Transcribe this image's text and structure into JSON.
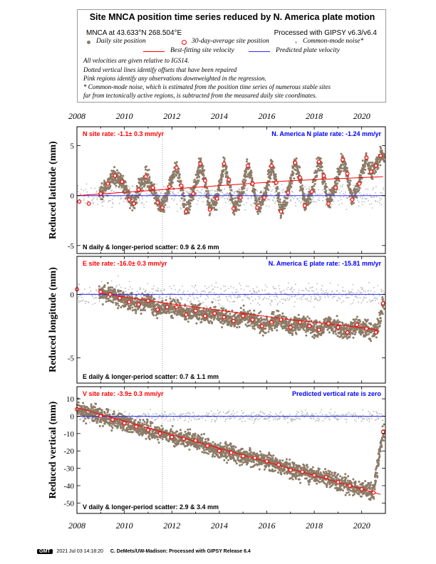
{
  "legend": {
    "title": "Site MNCA position time series reduced by N. America plate motion",
    "site_label": "MNCA at 43.633°N 268.504°E",
    "processed_label": "Processed with GIPSY v6.3/v6.4",
    "key_daily": "Daily site position",
    "key_avg": "30-day-average site position",
    "key_noise": "Common-mode noise*",
    "key_best": "Best-fitting site velocity",
    "key_pred": "Predicted plate velocity",
    "note1": "All velocities are given relative to IGS14.",
    "note2": "Dotted vertical lines identify offsets that have been repaired",
    "note3": "Pink regions identify any observations downweighted in the regression.",
    "note4": "* Common-mode noise, which is estimated from the position time series of numerous stable sites",
    "note5": "far from tectonically active regions, is subtracted from the measured daily site coordinates."
  },
  "colors": {
    "daily": "#8c7b67",
    "noise": "#b9b9b9",
    "avg": "#ff0000",
    "best": "#ff0000",
    "pred": "#2a2aff",
    "red_text": "#ff0000",
    "blue_text": "#0000ff"
  },
  "chart_data": [
    {
      "type": "scatter",
      "ylabel": "Reduced latitude (mm)",
      "xlim": [
        2008,
        2021
      ],
      "ylim": [
        -5.8,
        6.9
      ],
      "yticks": [
        "-5",
        "0",
        "5"
      ],
      "xticks": [
        "2008",
        "2010",
        "2012",
        "2014",
        "2016",
        "2018",
        "2020"
      ],
      "site_rate": "N site rate:  -1.1± 0.3 mm/yr",
      "plate_rate": "N. America N plate rate:  -1.24 mm/yr",
      "scatter": "N daily & longer-period scatter:    0.9 &    2.6 mm",
      "offset_x": 2011.6,
      "predicted_y": 0,
      "best_fit": [
        [
          2008,
          0.0
        ],
        [
          2011,
          0.5
        ],
        [
          2014,
          1.0
        ],
        [
          2017,
          1.5
        ],
        [
          2020.9,
          1.9
        ]
      ],
      "series": [
        {
          "name": "30-day-average site position",
          "x": [
            2008.1,
            2008.5,
            2009.0,
            2009.3,
            2009.6,
            2009.9,
            2010.2,
            2010.4,
            2010.6,
            2010.9,
            2011.2,
            2011.4,
            2011.6,
            2011.9,
            2012.2,
            2012.4,
            2012.6,
            2012.9,
            2013.2,
            2013.4,
            2013.6,
            2013.9,
            2014.2,
            2014.4,
            2014.6,
            2014.9,
            2015.2,
            2015.4,
            2015.6,
            2015.9,
            2016.2,
            2016.4,
            2016.6,
            2016.9,
            2017.2,
            2017.4,
            2017.6,
            2017.9,
            2018.2,
            2018.4,
            2018.6,
            2018.9,
            2019.2,
            2019.4,
            2019.6,
            2019.9,
            2020.2,
            2020.4,
            2020.6,
            2020.8
          ],
          "y": [
            -0.6,
            -0.8,
            0.2,
            1.2,
            2.0,
            1.4,
            -0.4,
            -0.8,
            0.6,
            1.9,
            0.8,
            -0.7,
            -1.2,
            0.9,
            2.8,
            1.0,
            -1.6,
            0.2,
            3.2,
            1.5,
            -1.4,
            -0.3,
            3.2,
            1.6,
            -1.3,
            -0.2,
            3.0,
            1.2,
            -1.2,
            -0.2,
            3.0,
            1.3,
            -1.6,
            0.3,
            3.3,
            1.8,
            -1.0,
            0.4,
            3.4,
            2.0,
            -0.8,
            0.8,
            3.6,
            2.2,
            -0.4,
            1.2,
            3.8,
            2.4,
            3.0,
            4.0
          ]
        }
      ]
    },
    {
      "type": "scatter",
      "ylabel": "Reduced longitude (mm)",
      "xlim": [
        2008,
        2021
      ],
      "ylim": [
        -7.0,
        3.0
      ],
      "yticks": [
        "-5",
        "0"
      ],
      "xticks": [
        "2008",
        "2010",
        "2012",
        "2014",
        "2016",
        "2018",
        "2020"
      ],
      "site_rate": "E site rate:  -16.0± 0.3 mm/yr",
      "plate_rate": "N. America E plate rate:  -15.81 mm/yr",
      "scatter": "E daily & longer-period scatter:    0.7 &    1.1 mm",
      "offset_x": 2011.6,
      "predicted_y": 0,
      "best_fit": [
        [
          2009,
          0.1
        ],
        [
          2011,
          -0.5
        ],
        [
          2013,
          -1.0
        ],
        [
          2015,
          -1.5
        ],
        [
          2017,
          -2.0
        ],
        [
          2019,
          -2.4
        ],
        [
          2020.7,
          -2.8
        ]
      ],
      "series": [
        {
          "name": "30-day-average site position",
          "x": [
            2008.0,
            2009.0,
            2009.4,
            2009.8,
            2010.2,
            2010.6,
            2011.0,
            2011.4,
            2011.8,
            2012.2,
            2012.6,
            2013.0,
            2013.4,
            2013.8,
            2014.2,
            2014.6,
            2015.0,
            2015.4,
            2015.8,
            2016.2,
            2016.6,
            2017.0,
            2017.4,
            2017.8,
            2018.2,
            2018.6,
            2019.0,
            2019.4,
            2019.8,
            2020.2,
            2020.6,
            2020.9
          ],
          "y": [
            0.4,
            0.2,
            0.0,
            -0.3,
            -0.6,
            -0.8,
            -0.5,
            -1.2,
            -1.0,
            -1.0,
            -1.6,
            -1.3,
            -1.7,
            -1.5,
            -1.8,
            -2.1,
            -1.7,
            -2.0,
            -2.5,
            -2.2,
            -2.0,
            -2.6,
            -2.2,
            -2.5,
            -2.8,
            -2.3,
            -2.6,
            -3.0,
            -2.4,
            -2.7,
            -3.0,
            -0.7
          ]
        }
      ]
    },
    {
      "type": "scatter",
      "ylabel": "Reduced vertical (mm)",
      "xlim": [
        2008,
        2021
      ],
      "ylim": [
        -56,
        17
      ],
      "yticks": [
        "10",
        "0",
        "-10",
        "-20",
        "-30",
        "-40",
        "-50"
      ],
      "xticks": [
        "2008",
        "2010",
        "2012",
        "2014",
        "2016",
        "2018",
        "2020"
      ],
      "site_rate": "V site rate:  -3.9± 0.3 mm/yr",
      "plate_rate": "Predicted vertical rate is zero",
      "scatter": "V daily & longer-period scatter:    2.9 &    3.4 mm",
      "offset_x": 2011.6,
      "predicted_y": 0,
      "best_fit": [
        [
          2008,
          5.0
        ],
        [
          2020.8,
          -45.0
        ]
      ],
      "series": [
        {
          "name": "30-day-average site position",
          "x": [
            2008.0,
            2009.0,
            2009.5,
            2010.0,
            2010.5,
            2011.0,
            2011.5,
            2012.0,
            2012.5,
            2013.0,
            2013.5,
            2014.0,
            2014.5,
            2015.0,
            2015.5,
            2016.0,
            2016.5,
            2017.0,
            2017.5,
            2018.0,
            2018.5,
            2019.0,
            2019.5,
            2020.0,
            2020.5,
            2020.9
          ],
          "y": [
            4,
            0,
            -2,
            -4,
            -6,
            -8,
            -10,
            -12,
            -13,
            -14,
            -17,
            -20,
            -21,
            -23,
            -24,
            -26,
            -28,
            -31,
            -32,
            -34,
            -35,
            -38,
            -40,
            -42,
            -44,
            -9
          ]
        }
      ]
    }
  ],
  "footer": {
    "gmt": "GMT",
    "stamp": "2021 Jul 03 14:18:20",
    "credit": "C. DeMets/UW-Madison: Processed with GIPSY Release 6.4"
  }
}
